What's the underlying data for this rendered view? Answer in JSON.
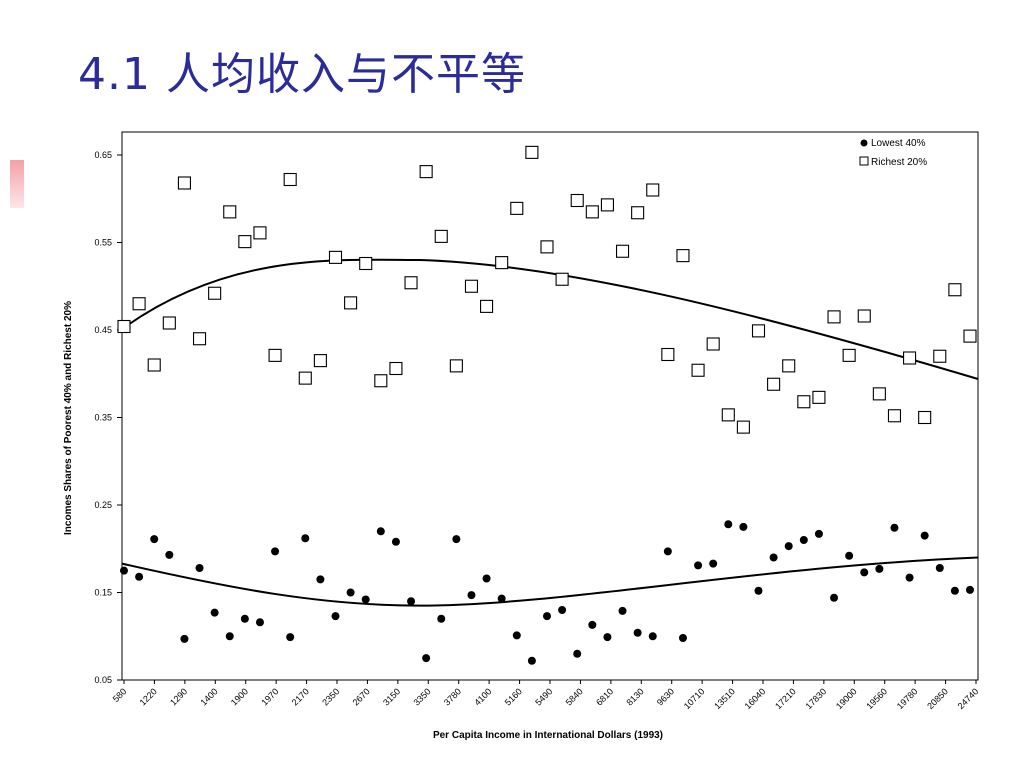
{
  "slide": {
    "title": "4.1 人均收入与不平等",
    "title_color": "#2b2c9a",
    "accent_color": "#f4a0a8"
  },
  "chart_data": {
    "type": "scatter",
    "title": "",
    "xlabel": "Per Capita Income in International Dollars (1993)",
    "ylabel": "Incomes Shares of Poorest 40% and Richest 20%",
    "ylim": [
      0.05,
      0.67
    ],
    "yticks": [
      0.65,
      0.55,
      0.45,
      0.35,
      0.25,
      0.15,
      0.05
    ],
    "ytick_labels": [
      "0.65",
      "0.55",
      "0.45",
      "0.35",
      "0.25",
      "0.15",
      "0.05"
    ],
    "xtick_labels": [
      "580",
      "1220",
      "1290",
      "1400",
      "1900",
      "1970",
      "2170",
      "2350",
      "2670",
      "3150",
      "3350",
      "3780",
      "4100",
      "5160",
      "5490",
      "5840",
      "6810",
      "8130",
      "9630",
      "10710",
      "13510",
      "16040",
      "17210",
      "17830",
      "19000",
      "19560",
      "19780",
      "20850",
      "24740"
    ],
    "grid": false,
    "legend_position": "top-right",
    "series": [
      {
        "name": "Richest 20%",
        "marker": "open-square",
        "values": [
          0.454,
          0.48,
          0.41,
          0.458,
          0.618,
          0.44,
          0.492,
          0.585,
          0.551,
          0.561,
          0.421,
          0.622,
          0.395,
          0.415,
          0.533,
          0.481,
          0.526,
          0.392,
          0.406,
          0.504,
          0.631,
          0.557,
          0.409,
          0.5,
          0.477,
          0.527,
          0.589,
          0.653,
          0.545,
          0.508,
          0.598,
          0.585,
          0.593,
          0.54,
          0.584,
          0.61,
          0.422,
          0.535,
          0.404,
          0.434,
          0.353,
          0.339,
          0.449,
          0.388,
          0.409,
          0.368,
          0.373,
          0.465,
          0.421,
          0.466,
          0.377,
          0.352,
          0.418,
          0.35,
          0.42,
          0.496,
          0.443
        ]
      },
      {
        "name": "Lowest 40%",
        "marker": "filled-circle",
        "values": [
          0.175,
          0.168,
          0.211,
          0.193,
          0.097,
          0.178,
          0.127,
          0.1,
          0.12,
          0.116,
          0.197,
          0.099,
          0.212,
          0.165,
          0.123,
          0.15,
          0.142,
          0.22,
          0.208,
          0.14,
          0.075,
          0.12,
          0.211,
          0.147,
          0.166,
          0.143,
          0.101,
          0.072,
          0.123,
          0.13,
          0.08,
          0.113,
          0.099,
          0.129,
          0.104,
          0.1,
          0.197,
          0.098,
          0.181,
          0.183,
          0.228,
          0.225,
          0.152,
          0.19,
          0.203,
          0.21,
          0.217,
          0.144,
          0.192,
          0.173,
          0.177,
          0.224,
          0.167,
          0.215,
          0.178,
          0.152,
          0.153
        ]
      }
    ],
    "trendlines": [
      {
        "series": "Richest 20%",
        "shape": "curve",
        "start": 0.451,
        "peak": 0.53,
        "end": 0.394
      },
      {
        "series": "Lowest 40%",
        "shape": "curve",
        "start": 0.183,
        "trough": 0.135,
        "end": 0.19
      }
    ]
  }
}
